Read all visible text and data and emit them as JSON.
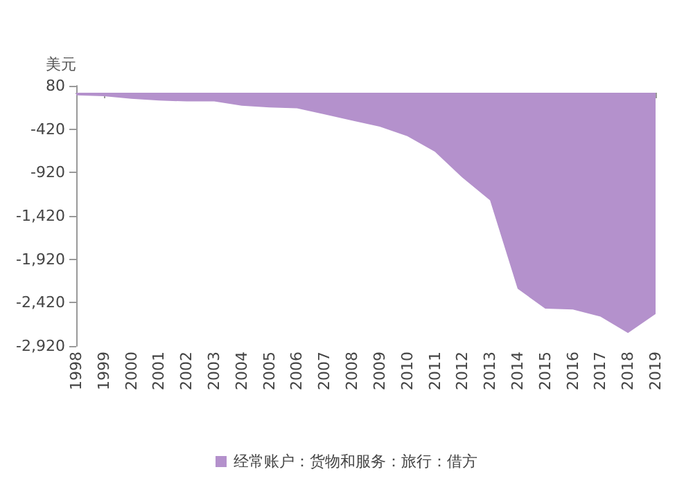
{
  "chart_data": {
    "type": "area",
    "ylabel": "美元",
    "categories": [
      "1998",
      "1999",
      "2000",
      "2001",
      "2002",
      "2003",
      "2004",
      "2005",
      "2006",
      "2007",
      "2008",
      "2009",
      "2010",
      "2011",
      "2012",
      "2013",
      "2014",
      "2015",
      "2016",
      "2017",
      "2018",
      "2019"
    ],
    "series": [
      {
        "name": "经常账户：货物和服务：旅行：借方",
        "color": "#b491cc",
        "values": [
          -30,
          -40,
          -70,
          -90,
          -100,
          -100,
          -150,
          -170,
          -180,
          -250,
          -320,
          -390,
          -500,
          -680,
          -980,
          -1240,
          -2260,
          -2490,
          -2500,
          -2580,
          -2770,
          -2550
        ]
      }
    ],
    "ylim": [
      -2920,
      80
    ],
    "yticks": [
      80,
      -420,
      -920,
      {
        "value": -1420,
        "label": "-1,420"
      },
      {
        "value": -1920,
        "label": "-1,920"
      },
      {
        "value": -2420,
        "label": "-2,420"
      },
      {
        "value": -2920,
        "label": "-2,920"
      }
    ],
    "grid": false,
    "legend": "bottom"
  }
}
